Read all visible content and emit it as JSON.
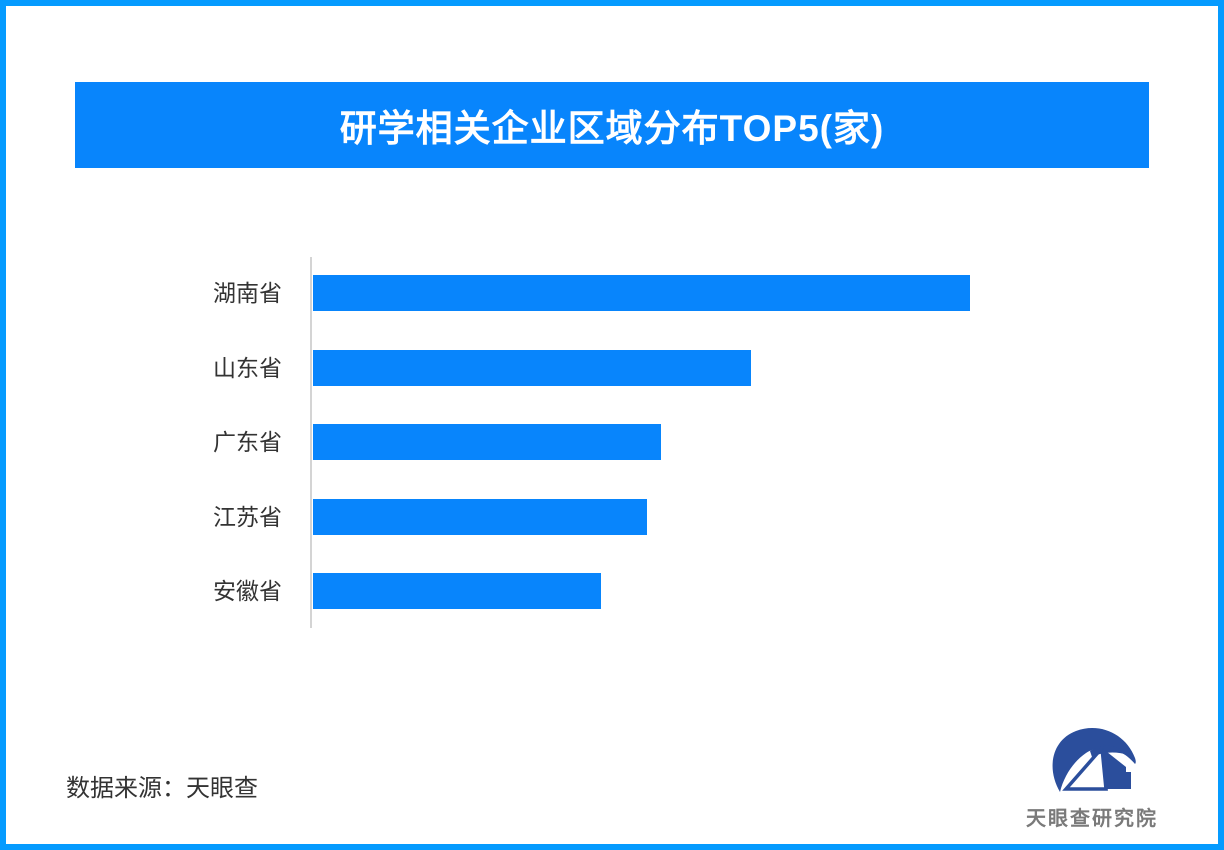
{
  "page": {
    "background_color": "#ffffff",
    "border_color": "#059bff"
  },
  "header": {
    "title": "研学相关企业区域分布TOP5(家)",
    "bg_color": "#0885fc",
    "text_color": "#ffffff"
  },
  "chart_data": {
    "type": "bar",
    "orientation": "horizontal",
    "title": "研学相关企业区域分布TOP5(家)",
    "unit": "家",
    "categories": [
      "湖南省",
      "山东省",
      "广东省",
      "江苏省",
      "安徽省"
    ],
    "values_pct_of_max": [
      100,
      66.7,
      53.0,
      50.8,
      43.8
    ],
    "value_labels_shown": false,
    "axis_tick_labels_shown": false,
    "grid": false,
    "legend": false,
    "bar_color": "#0885fc",
    "axis_line_color": "#d4d4d4",
    "label_color": "#333333"
  },
  "footer": {
    "source_label": "数据来源：天眼查"
  },
  "logo": {
    "text": "天眼查研究院",
    "mark_color": "#2b4e9c",
    "text_color": "#7a7a7a"
  }
}
